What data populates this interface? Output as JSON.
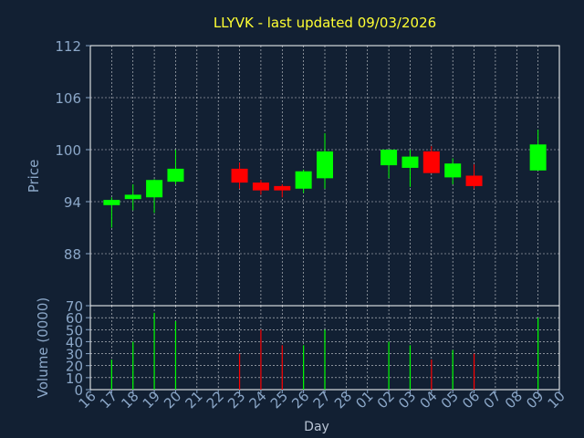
{
  "title": "LLYVK - last updated 09/03/2026",
  "colors": {
    "background": "#122033",
    "plot_bg": "#122033",
    "text_axis": "#8ba7c8",
    "title": "#ffff33",
    "up": "#00ff00",
    "down": "#ff0000",
    "grid": "#ffffff",
    "axis_label": "#b8c4d4"
  },
  "chart_data": [
    {
      "type": "candlestick",
      "title": "LLYVK - last updated 09/03/2026",
      "ylabel": "Price",
      "ylim": [
        82,
        112
      ],
      "yticks": [
        "88",
        "94",
        "100",
        "106",
        "112"
      ],
      "xlabel": "Day",
      "x_ticks": [
        "16",
        "17",
        "18",
        "19",
        "20",
        "21",
        "22",
        "23",
        "24",
        "25",
        "26",
        "27",
        "28",
        "01",
        "02",
        "03",
        "04",
        "05",
        "06",
        "07",
        "08",
        "09",
        "10"
      ],
      "candles": [
        {
          "day": "17",
          "open": 93.6,
          "close": 94.2,
          "high": 94.5,
          "low": 91.0,
          "direction": "up"
        },
        {
          "day": "18",
          "open": 94.3,
          "close": 94.8,
          "high": 96.0,
          "low": 93.0,
          "direction": "up"
        },
        {
          "day": "19",
          "open": 94.5,
          "close": 96.5,
          "high": 96.6,
          "low": 92.7,
          "direction": "up"
        },
        {
          "day": "20",
          "open": 96.3,
          "close": 97.8,
          "high": 100.0,
          "low": 96.0,
          "direction": "up"
        },
        {
          "day": "23",
          "open": 97.8,
          "close": 96.2,
          "high": 98.5,
          "low": 95.5,
          "direction": "down"
        },
        {
          "day": "24",
          "open": 96.2,
          "close": 95.3,
          "high": 96.5,
          "low": 94.8,
          "direction": "down"
        },
        {
          "day": "25",
          "open": 95.8,
          "close": 95.3,
          "high": 96.0,
          "low": 94.5,
          "direction": "down"
        },
        {
          "day": "26",
          "open": 95.5,
          "close": 97.5,
          "high": 97.7,
          "low": 95.0,
          "direction": "up"
        },
        {
          "day": "27",
          "open": 96.7,
          "close": 99.8,
          "high": 101.9,
          "low": 95.5,
          "direction": "up"
        },
        {
          "day": "02",
          "open": 98.2,
          "close": 100.0,
          "high": 100.0,
          "low": 96.7,
          "direction": "up"
        },
        {
          "day": "03",
          "open": 97.9,
          "close": 99.2,
          "high": 100.0,
          "low": 95.7,
          "direction": "up"
        },
        {
          "day": "04",
          "open": 99.8,
          "close": 97.3,
          "high": 100.4,
          "low": 97.3,
          "direction": "down"
        },
        {
          "day": "05",
          "open": 96.8,
          "close": 98.4,
          "high": 99.0,
          "low": 96.0,
          "direction": "up"
        },
        {
          "day": "06",
          "open": 97.0,
          "close": 95.8,
          "high": 98.3,
          "low": 95.5,
          "direction": "down"
        },
        {
          "day": "09",
          "open": 97.6,
          "close": 100.6,
          "high": 102.3,
          "low": 97.6,
          "direction": "up"
        }
      ]
    },
    {
      "type": "bar",
      "ylabel": "Volume (0000)",
      "ylim": [
        0,
        70
      ],
      "yticks": [
        "0",
        "10",
        "20",
        "30",
        "40",
        "50",
        "60",
        "70"
      ],
      "xlabel": "Day",
      "volumes": [
        {
          "day": "17",
          "value": 25,
          "direction": "up"
        },
        {
          "day": "18",
          "value": 40,
          "direction": "up"
        },
        {
          "day": "19",
          "value": 64,
          "direction": "up"
        },
        {
          "day": "20",
          "value": 57,
          "direction": "up"
        },
        {
          "day": "23",
          "value": 30,
          "direction": "down"
        },
        {
          "day": "24",
          "value": 50,
          "direction": "down"
        },
        {
          "day": "25",
          "value": 37,
          "direction": "down"
        },
        {
          "day": "26",
          "value": 37,
          "direction": "up"
        },
        {
          "day": "27",
          "value": 50,
          "direction": "up"
        },
        {
          "day": "02",
          "value": 40,
          "direction": "up"
        },
        {
          "day": "03",
          "value": 37,
          "direction": "up"
        },
        {
          "day": "04",
          "value": 25,
          "direction": "down"
        },
        {
          "day": "05",
          "value": 33,
          "direction": "up"
        },
        {
          "day": "06",
          "value": 30,
          "direction": "down"
        },
        {
          "day": "09",
          "value": 60,
          "direction": "up"
        }
      ]
    }
  ]
}
